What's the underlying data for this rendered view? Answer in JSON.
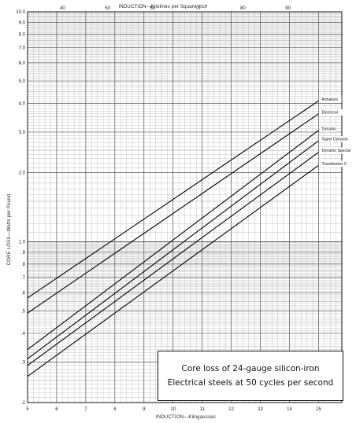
{
  "chart_data": {
    "type": "line",
    "x_bottom": {
      "label": "INDUCTION—Kilogausses",
      "tick_labels": [
        "5",
        "6",
        "7",
        "8",
        "9",
        "10",
        "11",
        "12",
        "13",
        "14",
        "15"
      ],
      "lim": [
        5,
        15.8
      ]
    },
    "x_top": {
      "label": "INDUCTION—Kilolines per Square Inch",
      "tick_labels": [
        "40",
        "50",
        "60",
        "70",
        "80",
        "90"
      ]
    },
    "y": {
      "label": "CORE LOSS—Watts per Pound",
      "scale": "log",
      "lim": [
        0.2,
        10.0
      ],
      "tick_labels": [
        "10.0",
        "9.0",
        "8.0",
        "7.0",
        "6.0",
        "5.0",
        "4.0",
        "3.0",
        "2.0",
        "1.0",
        ".9",
        ".8",
        ".7",
        ".6",
        ".5",
        ".4",
        ".3",
        ".2"
      ]
    },
    "grid": true,
    "series": [
      {
        "name": "Armature",
        "x": [
          5,
          15
        ],
        "y": [
          0.57,
          4.1
        ]
      },
      {
        "name": "Electrical",
        "x": [
          5,
          15
        ],
        "y": [
          0.49,
          3.6
        ]
      },
      {
        "name": "Dynamo",
        "x": [
          5,
          15
        ],
        "y": [
          0.34,
          3.05
        ]
      },
      {
        "name": "Super Dynamo",
        "x": [
          5,
          15
        ],
        "y": [
          0.31,
          2.75
        ]
      },
      {
        "name": "Dynamo Special",
        "x": [
          5,
          15
        ],
        "y": [
          0.29,
          2.45
        ]
      },
      {
        "name": "Transformer C",
        "x": [
          5,
          15
        ],
        "y": [
          0.26,
          2.15
        ]
      }
    ],
    "annotation": [
      "Core loss of 24-gauge silicon-iron",
      "Electrical steels at 50 cycles per second"
    ]
  }
}
